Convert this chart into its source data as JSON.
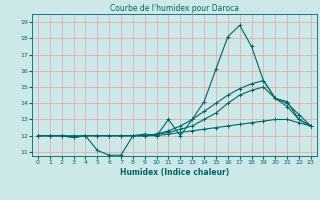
{
  "title": "Courbe de l'humidex pour Daroca",
  "xlabel": "Humidex (Indice chaleur)",
  "xlim": [
    -0.5,
    23.5
  ],
  "ylim": [
    10.75,
    19.5
  ],
  "yticks": [
    11,
    12,
    13,
    14,
    15,
    16,
    17,
    18,
    19
  ],
  "xticks": [
    0,
    1,
    2,
    3,
    4,
    5,
    6,
    7,
    8,
    9,
    10,
    11,
    12,
    13,
    14,
    15,
    16,
    17,
    18,
    19,
    20,
    21,
    22,
    23
  ],
  "bg_color": "#cce8e8",
  "grid_color": "#e8a0a0",
  "line_color": "#006666",
  "lines": [
    [
      12.0,
      12.0,
      12.0,
      11.9,
      12.0,
      11.1,
      10.8,
      10.8,
      12.0,
      12.1,
      12.0,
      13.0,
      12.0,
      13.0,
      14.1,
      16.1,
      18.1,
      18.8,
      17.5,
      15.4,
      14.3,
      14.1,
      13.0,
      12.6
    ],
    [
      12.0,
      12.0,
      12.0,
      11.9,
      12.0,
      12.0,
      12.0,
      12.0,
      12.0,
      12.0,
      12.1,
      12.2,
      12.4,
      12.6,
      13.0,
      13.4,
      14.0,
      14.5,
      14.8,
      15.0,
      14.3,
      13.8,
      13.0,
      12.6
    ],
    [
      12.0,
      12.0,
      12.0,
      11.9,
      12.0,
      12.0,
      12.0,
      12.0,
      12.0,
      12.0,
      12.1,
      12.3,
      12.6,
      13.0,
      13.5,
      14.0,
      14.5,
      14.9,
      15.2,
      15.4,
      14.3,
      14.0,
      13.3,
      12.6
    ],
    [
      12.0,
      12.0,
      12.0,
      12.0,
      12.0,
      12.0,
      12.0,
      12.0,
      12.0,
      12.0,
      12.0,
      12.1,
      12.2,
      12.3,
      12.4,
      12.5,
      12.6,
      12.7,
      12.8,
      12.9,
      13.0,
      13.0,
      12.8,
      12.6
    ]
  ]
}
